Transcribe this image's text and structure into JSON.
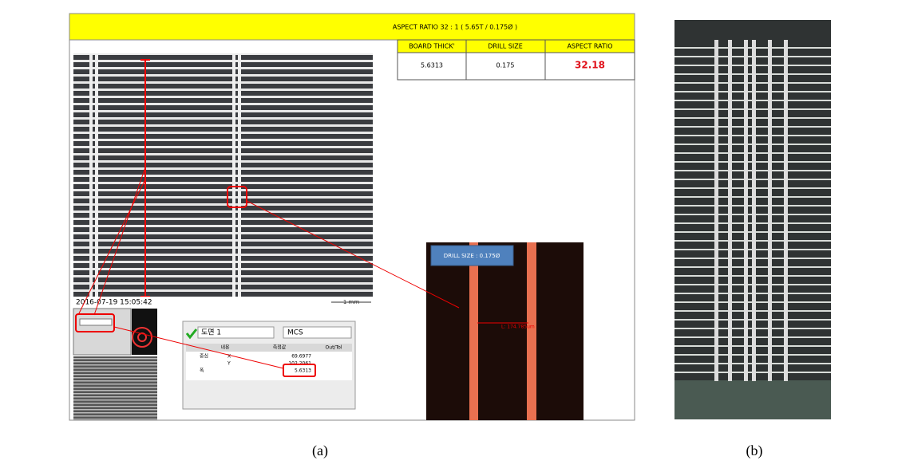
{
  "panel_a": {
    "header": "ASPECT RATIO 32 : 1 ( 5.65T / 0.175Ø )",
    "table": {
      "headers": [
        "BOARD THICK'",
        "DRILL SIZE",
        "ASPECT RATIO"
      ],
      "values": [
        "5.6313",
        "0.175",
        "32.18"
      ]
    },
    "timestamp": "2016-07-19 15:05:42",
    "scale_label": "1 mm",
    "drill_label": "DRILL SIZE : 0.175Ø",
    "measurement_label": "L: 174.785um",
    "dialog": {
      "field_1": "도면 1",
      "field_2": "MCS",
      "columns": [
        "내용",
        "측정값",
        "Out/Tol"
      ],
      "rows": [
        [
          "중심",
          "X",
          "69.6977"
        ],
        [
          "",
          "Y",
          "102.2061"
        ],
        [
          "폭",
          "",
          "5.6313"
        ]
      ]
    }
  },
  "captions": [
    "(a)",
    "(b)"
  ]
}
